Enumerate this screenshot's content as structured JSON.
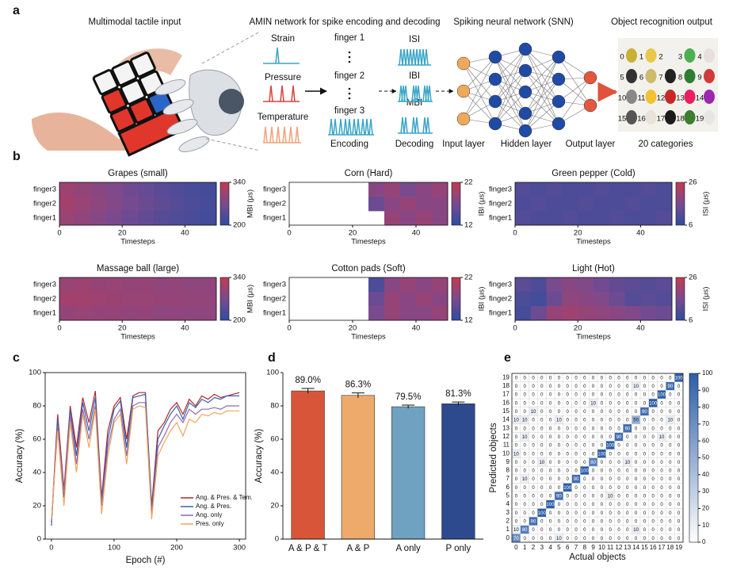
{
  "panel_labels": [
    "a",
    "b",
    "c",
    "d",
    "e"
  ],
  "panel_a": {
    "titles": [
      "Multimodal tactile input",
      "AMIN network for spike encoding and decoding",
      "Spiking neural network (SNN)",
      "Object recognition output"
    ],
    "modalities": [
      "Strain",
      "Pressure",
      "Temperature"
    ],
    "fingers": [
      "finger 1",
      "finger 2",
      "finger 3"
    ],
    "encoding": "Encoding",
    "decode_types": [
      "ISI",
      "IBI",
      "MBI"
    ],
    "decoding": "Decoding",
    "layers": [
      "Input layer",
      "Hidden layer",
      "Output layer"
    ],
    "categories_label": "20 categories",
    "object_ids": [
      0,
      1,
      2,
      3,
      4,
      5,
      6,
      7,
      8,
      9,
      10,
      11,
      12,
      13,
      14,
      15,
      16,
      17,
      18,
      19
    ]
  },
  "chart_data": [
    {
      "type": "heatmap",
      "title": "Grapes (small)",
      "xlabel": "Timesteps",
      "rows": [
        "finger3",
        "finger2",
        "finger1"
      ],
      "x": [
        0,
        5,
        10,
        15,
        20,
        25,
        30,
        35,
        40,
        45
      ],
      "xlim": [
        0,
        50
      ],
      "xticks": [
        0,
        20,
        40
      ],
      "values": [
        [
          305,
          295,
          285,
          275,
          260,
          250,
          240,
          232,
          225,
          220
        ],
        [
          310,
          300,
          290,
          278,
          265,
          255,
          245,
          235,
          228,
          222
        ],
        [
          300,
          292,
          282,
          270,
          258,
          248,
          238,
          230,
          224,
          218
        ]
      ],
      "colorbar_label": "MBI (μs)",
      "zlim": [
        200,
        340
      ],
      "zticks": [
        200,
        340
      ]
    },
    {
      "type": "heatmap",
      "title": "Corn (Hard)",
      "xlabel": "Timesteps",
      "rows": [
        "finger3",
        "finger2",
        "finger1"
      ],
      "x": [
        0,
        5,
        10,
        15,
        20,
        25,
        30,
        35,
        40,
        45
      ],
      "xlim": [
        0,
        50
      ],
      "xticks": [
        0,
        20,
        40
      ],
      "values": [
        [
          null,
          null,
          null,
          null,
          null,
          18,
          19,
          17,
          18,
          19
        ],
        [
          null,
          null,
          null,
          null,
          null,
          16,
          18,
          19,
          18,
          18
        ],
        [
          null,
          null,
          null,
          null,
          null,
          null,
          19,
          18,
          19,
          18
        ]
      ],
      "colorbar_label": "IBI (μs)",
      "zlim": [
        12,
        22
      ],
      "zticks": [
        12,
        22
      ]
    },
    {
      "type": "heatmap",
      "title": "Green pepper (Cold)",
      "xlabel": "Timesteps",
      "rows": [
        "finger3",
        "finger2",
        "finger1"
      ],
      "x": [
        0,
        5,
        10,
        15,
        20,
        25,
        30,
        35,
        40,
        45
      ],
      "xlim": [
        0,
        50
      ],
      "xticks": [
        0,
        20,
        40
      ],
      "values": [
        [
          11,
          10,
          11,
          10,
          10,
          11,
          10,
          10,
          11,
          10
        ],
        [
          10,
          11,
          10,
          10,
          11,
          10,
          10,
          11,
          10,
          10
        ],
        [
          11,
          10,
          10,
          11,
          10,
          10,
          11,
          10,
          10,
          11
        ]
      ],
      "colorbar_label": "ISI (μs)",
      "zlim": [
        6,
        26
      ],
      "zticks": [
        6,
        26
      ]
    },
    {
      "type": "heatmap",
      "title": "Massage ball (large)",
      "xlabel": "Timesteps",
      "rows": [
        "finger3",
        "finger2",
        "finger1"
      ],
      "x": [
        0,
        5,
        10,
        15,
        20,
        25,
        30,
        35,
        40,
        45
      ],
      "xlim": [
        0,
        50
      ],
      "xticks": [
        0,
        20,
        40
      ],
      "values": [
        [
          300,
          305,
          298,
          300,
          295,
          298,
          292,
          295,
          290,
          292
        ],
        [
          310,
          308,
          305,
          302,
          300,
          300,
          298,
          296,
          295,
          294
        ],
        [
          295,
          300,
          296,
          298,
          294,
          296,
          290,
          292,
          290,
          290
        ]
      ],
      "colorbar_label": "MBI (μs)",
      "zlim": [
        200,
        340
      ],
      "zticks": [
        200,
        340
      ]
    },
    {
      "type": "heatmap",
      "title": "Cotton pads (Soft)",
      "xlabel": "Timesteps",
      "rows": [
        "finger3",
        "finger2",
        "finger1"
      ],
      "x": [
        0,
        5,
        10,
        15,
        20,
        25,
        30,
        35,
        40,
        45
      ],
      "xlim": [
        0,
        50
      ],
      "xticks": [
        0,
        20,
        40
      ],
      "values": [
        [
          null,
          null,
          null,
          null,
          null,
          14,
          18,
          19,
          18,
          19
        ],
        [
          null,
          null,
          null,
          null,
          null,
          16,
          19,
          18,
          19,
          18
        ],
        [
          null,
          null,
          null,
          null,
          null,
          17,
          19,
          18,
          18,
          19
        ]
      ],
      "colorbar_label": "IBI (μs)",
      "zlim": [
        12,
        22
      ],
      "zticks": [
        12,
        22
      ]
    },
    {
      "type": "heatmap",
      "title": "Light (Hot)",
      "xlabel": "Timesteps",
      "rows": [
        "finger3",
        "finger2",
        "finger1"
      ],
      "x": [
        0,
        5,
        10,
        15,
        20,
        25,
        30,
        35,
        40,
        45
      ],
      "xlim": [
        0,
        50
      ],
      "xticks": [
        0,
        20,
        40
      ],
      "values": [
        [
          12,
          10,
          16,
          18,
          17,
          15,
          13,
          12,
          11,
          12
        ],
        [
          10,
          9,
          14,
          19,
          18,
          17,
          14,
          11,
          12,
          11
        ],
        [
          9,
          14,
          20,
          21,
          20,
          19,
          18,
          17,
          15,
          14
        ]
      ],
      "colorbar_label": "ISI (μs)",
      "zlim": [
        6,
        26
      ],
      "zticks": [
        6,
        26
      ]
    },
    {
      "type": "line",
      "xlabel": "Epoch (#)",
      "ylabel": "Accuracy (%)",
      "x": [
        0,
        10,
        20,
        30,
        40,
        50,
        60,
        70,
        80,
        90,
        100,
        110,
        120,
        130,
        140,
        150,
        160,
        170,
        180,
        190,
        200,
        210,
        220,
        230,
        240,
        250,
        260,
        270,
        280,
        290,
        300
      ],
      "xlim": [
        -10,
        310
      ],
      "xticks": [
        0,
        100,
        200,
        300
      ],
      "ylim": [
        0,
        100
      ],
      "yticks": [
        0,
        20,
        40,
        60,
        80,
        100
      ],
      "legend": "lower right",
      "series": [
        {
          "name": "Ang. & Pres. & Tem.",
          "color": "#b3262b",
          "values": [
            10,
            75,
            30,
            80,
            55,
            85,
            70,
            89,
            25,
            65,
            80,
            85,
            60,
            86,
            88,
            88,
            20,
            65,
            70,
            78,
            82,
            75,
            84,
            80,
            86,
            84,
            87,
            85,
            86,
            87,
            88
          ]
        },
        {
          "name": "Ang. & Pres.",
          "color": "#3c5fa8",
          "values": [
            8,
            72,
            25,
            78,
            50,
            82,
            65,
            85,
            22,
            60,
            78,
            83,
            55,
            85,
            86,
            87,
            18,
            60,
            68,
            75,
            80,
            72,
            82,
            79,
            84,
            82,
            85,
            84,
            86,
            86,
            86
          ]
        },
        {
          "name": "Ang. only",
          "color": "#8e6bb5",
          "values": [
            10,
            68,
            28,
            74,
            45,
            78,
            60,
            80,
            20,
            55,
            72,
            78,
            50,
            80,
            82,
            82,
            15,
            55,
            62,
            70,
            75,
            70,
            78,
            75,
            78,
            78,
            79,
            78,
            80,
            80,
            80
          ]
        },
        {
          "name": "Pres. only",
          "color": "#f0a65a",
          "values": [
            12,
            65,
            20,
            70,
            40,
            75,
            55,
            78,
            15,
            50,
            70,
            75,
            45,
            78,
            80,
            79,
            12,
            50,
            58,
            65,
            70,
            62,
            72,
            70,
            75,
            74,
            76,
            75,
            77,
            77,
            77
          ]
        }
      ]
    },
    {
      "type": "bar",
      "ylabel": "Accuracy (%)",
      "categories": [
        "A & P & T",
        "A & P",
        "A only",
        "P only"
      ],
      "values": [
        89.0,
        86.3,
        79.5,
        81.3
      ],
      "value_labels": [
        "89.0%",
        "86.3%",
        "79.5%",
        "81.3%"
      ],
      "errors": [
        1.5,
        1.5,
        1.0,
        1.0
      ],
      "colors": [
        "#d9553a",
        "#edaa6a",
        "#6fa1c1",
        "#2e4a8e"
      ],
      "ylim": [
        0,
        100
      ],
      "yticks": [
        0,
        20,
        40,
        60,
        80,
        100
      ]
    },
    {
      "type": "confusion",
      "xlabel": "Actual objects",
      "ylabel": "Predicted objects",
      "categories": [
        0,
        1,
        2,
        3,
        4,
        5,
        6,
        7,
        8,
        9,
        10,
        11,
        12,
        13,
        14,
        15,
        16,
        17,
        18,
        19
      ],
      "values": [
        [
          70,
          0,
          0,
          0,
          0,
          10,
          0,
          0,
          0,
          0,
          0,
          0,
          0,
          0,
          0,
          0,
          0,
          0,
          0,
          0
        ],
        [
          10,
          80,
          0,
          0,
          0,
          0,
          0,
          0,
          0,
          0,
          0,
          0,
          0,
          0,
          10,
          0,
          0,
          0,
          0,
          0
        ],
        [
          0,
          0,
          90,
          0,
          0,
          0,
          0,
          0,
          0,
          0,
          0,
          0,
          0,
          0,
          0,
          0,
          0,
          0,
          0,
          0
        ],
        [
          0,
          0,
          0,
          100,
          0,
          0,
          0,
          0,
          0,
          0,
          0,
          0,
          0,
          0,
          0,
          0,
          0,
          0,
          0,
          0
        ],
        [
          0,
          0,
          0,
          0,
          100,
          0,
          0,
          0,
          0,
          0,
          0,
          0,
          0,
          0,
          0,
          0,
          0,
          0,
          0,
          0
        ],
        [
          0,
          0,
          0,
          0,
          0,
          90,
          0,
          0,
          0,
          0,
          0,
          10,
          0,
          0,
          0,
          0,
          0,
          0,
          0,
          0
        ],
        [
          0,
          0,
          0,
          0,
          0,
          0,
          100,
          0,
          0,
          0,
          0,
          0,
          0,
          0,
          0,
          0,
          0,
          0,
          0,
          0
        ],
        [
          0,
          10,
          0,
          0,
          0,
          0,
          0,
          90,
          0,
          0,
          0,
          0,
          0,
          0,
          0,
          0,
          0,
          0,
          0,
          0
        ],
        [
          0,
          0,
          0,
          0,
          0,
          0,
          0,
          0,
          100,
          0,
          0,
          0,
          0,
          0,
          0,
          0,
          0,
          0,
          0,
          0
        ],
        [
          0,
          0,
          0,
          10,
          0,
          0,
          0,
          0,
          0,
          80,
          0,
          0,
          0,
          10,
          0,
          0,
          0,
          0,
          0,
          0
        ],
        [
          10,
          0,
          0,
          0,
          0,
          0,
          0,
          0,
          0,
          0,
          100,
          0,
          0,
          0,
          0,
          0,
          0,
          0,
          0,
          0
        ],
        [
          0,
          0,
          0,
          0,
          0,
          0,
          0,
          0,
          0,
          0,
          0,
          100,
          0,
          0,
          0,
          0,
          0,
          0,
          0,
          0
        ],
        [
          0,
          10,
          0,
          0,
          0,
          0,
          0,
          0,
          0,
          0,
          0,
          0,
          90,
          0,
          0,
          0,
          0,
          10,
          0,
          0
        ],
        [
          0,
          0,
          0,
          0,
          0,
          0,
          0,
          0,
          0,
          0,
          0,
          0,
          0,
          90,
          0,
          0,
          0,
          0,
          0,
          0
        ],
        [
          10,
          10,
          0,
          0,
          0,
          10,
          0,
          0,
          0,
          0,
          0,
          0,
          0,
          0,
          50,
          0,
          0,
          0,
          10,
          0
        ],
        [
          0,
          0,
          10,
          0,
          0,
          0,
          0,
          0,
          0,
          0,
          0,
          0,
          0,
          0,
          0,
          90,
          0,
          0,
          0,
          0
        ],
        [
          0,
          0,
          0,
          0,
          0,
          0,
          0,
          0,
          0,
          10,
          0,
          0,
          0,
          0,
          0,
          0,
          100,
          0,
          0,
          0
        ],
        [
          0,
          0,
          0,
          0,
          0,
          0,
          0,
          0,
          0,
          0,
          0,
          0,
          0,
          0,
          0,
          0,
          0,
          100,
          0,
          0
        ],
        [
          0,
          0,
          0,
          0,
          0,
          0,
          0,
          0,
          0,
          0,
          0,
          0,
          0,
          0,
          10,
          0,
          0,
          0,
          90,
          0
        ],
        [
          0,
          0,
          0,
          0,
          0,
          0,
          0,
          0,
          0,
          0,
          0,
          0,
          0,
          0,
          0,
          0,
          0,
          0,
          0,
          100
        ]
      ],
      "color": "#2c5ea8",
      "zlim": [
        0,
        100
      ],
      "zticks": [
        0,
        10,
        20,
        30,
        40,
        50,
        60,
        70,
        80,
        90,
        100
      ]
    }
  ]
}
